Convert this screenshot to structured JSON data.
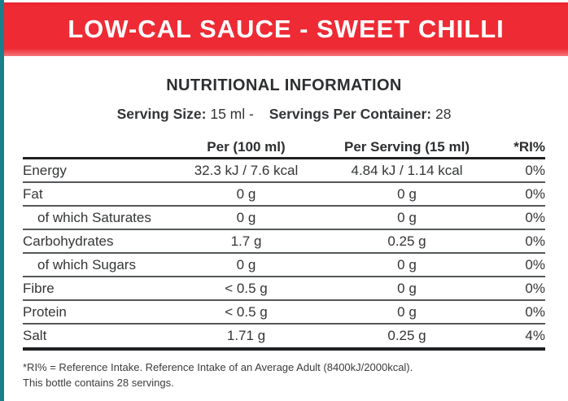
{
  "banner": {
    "title": "LOW-CAL SAUCE - SWEET CHILLI"
  },
  "heading": "NUTRITIONAL INFORMATION",
  "serving": {
    "size_label": "Serving Size:",
    "size_value": "15 ml",
    "separator": "-",
    "container_label": "Servings Per Container:",
    "container_value": "28"
  },
  "table": {
    "columns": {
      "nutrient": "",
      "per100": "Per (100 ml)",
      "per_serving": "Per Serving (15 ml)",
      "ri": "*RI%"
    },
    "rows": [
      {
        "label": "Energy",
        "per100": "32.3 kJ / 7.6 kcal",
        "per_serving": "4.84 kJ / 1.14 kcal",
        "ri": "0%",
        "indent": false
      },
      {
        "label": "Fat",
        "per100": "0 g",
        "per_serving": "0 g",
        "ri": "0%",
        "indent": false
      },
      {
        "label": "of which Saturates",
        "per100": "0 g",
        "per_serving": "0 g",
        "ri": "0%",
        "indent": true
      },
      {
        "label": "Carbohydrates",
        "per100": "1.7 g",
        "per_serving": "0.25 g",
        "ri": "0%",
        "indent": false
      },
      {
        "label": "of which Sugars",
        "per100": "0 g",
        "per_serving": "0 g",
        "ri": "0%",
        "indent": true
      },
      {
        "label": "Fibre",
        "per100": "< 0.5 g",
        "per_serving": "0 g",
        "ri": "0%",
        "indent": false
      },
      {
        "label": "Protein",
        "per100": "< 0.5 g",
        "per_serving": "0 g",
        "ri": "0%",
        "indent": false
      },
      {
        "label": "Salt",
        "per100": "1.71 g",
        "per_serving": "0.25 g",
        "ri": "4%",
        "indent": false
      }
    ]
  },
  "footnote": {
    "line1": "*RI% = Reference Intake. Reference Intake of an Average Adult (8400kJ/2000kcal).",
    "line2": "This bottle contains 28 servings."
  },
  "colors": {
    "banner_red": "#ee2b35",
    "edge_teal": "#1a7f8c",
    "text_dark": "#333537"
  }
}
